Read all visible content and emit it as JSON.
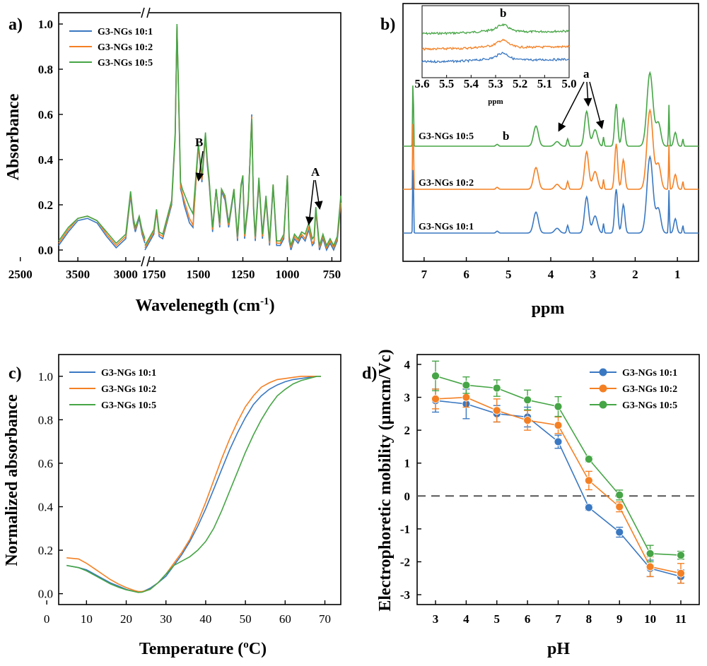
{
  "colors": {
    "s1": "#3a78c2",
    "s2": "#f48024",
    "s3": "#46a546"
  },
  "panel_labels": [
    "a)",
    "b)",
    "c)",
    "d)"
  ],
  "chart_data": [
    {
      "panel": "a)",
      "type": "line",
      "xlabel": "Wavelenegth (cm",
      "xlabel_sup": "-1",
      "xlabel_end": ")",
      "ylabel": "Absorbance",
      "xlim": [
        3700,
        700
      ],
      "x_break": [
        1800,
        1800
      ],
      "ylim": [
        -0.05,
        1.05
      ],
      "xticks": [
        3500,
        3000,
        2500,
        1750,
        1500,
        1250,
        1000,
        750
      ],
      "yticks": [
        0.0,
        0.2,
        0.4,
        0.6,
        0.8,
        1.0
      ],
      "annotations": [
        "B",
        "A"
      ],
      "series": [
        {
          "name": "G3-NGs 10:1",
          "color": "#3a78c2",
          "x": [
            3700,
            3600,
            3500,
            3400,
            3300,
            3200,
            3100,
            3000,
            2950,
            2920,
            2900,
            2860,
            2830,
            2800,
            1800,
            1750,
            1735,
            1720,
            1700,
            1650,
            1630,
            1620,
            1610,
            1600,
            1590,
            1580,
            1550,
            1530,
            1500,
            1480,
            1460,
            1450,
            1440,
            1420,
            1400,
            1380,
            1370,
            1350,
            1330,
            1300,
            1280,
            1260,
            1250,
            1240,
            1220,
            1200,
            1190,
            1180,
            1160,
            1140,
            1120,
            1100,
            1080,
            1060,
            1040,
            1020,
            1000,
            990,
            980,
            960,
            940,
            920,
            900,
            880,
            860,
            850,
            840,
            820,
            800,
            780,
            760,
            740,
            720,
            700
          ],
          "y": [
            0.02,
            0.08,
            0.13,
            0.14,
            0.12,
            0.06,
            0.01,
            0.05,
            0.24,
            0.12,
            0.08,
            0.14,
            0.07,
            0.03,
            0.0,
            0.07,
            0.17,
            0.06,
            0.05,
            0.2,
            0.5,
            0.99,
            0.65,
            0.27,
            0.24,
            0.2,
            0.12,
            0.1,
            0.46,
            0.3,
            0.5,
            0.38,
            0.3,
            0.08,
            0.27,
            0.1,
            0.26,
            0.22,
            0.1,
            0.26,
            0.04,
            0.28,
            0.32,
            0.05,
            0.2,
            0.6,
            0.18,
            0.04,
            0.3,
            0.05,
            0.22,
            0.02,
            0.28,
            0.02,
            0.02,
            0.05,
            0.33,
            0.04,
            0.0,
            0.05,
            0.03,
            0.06,
            0.04,
            0.09,
            0.02,
            0.03,
            0.18,
            0.0,
            0.05,
            0.0,
            0.03,
            0.0,
            0.04,
            0.2
          ]
        },
        {
          "name": "G3-NGs 10:2",
          "color": "#f48024",
          "x": [
            3700,
            3600,
            3500,
            3400,
            3300,
            3200,
            3100,
            3000,
            2950,
            2920,
            2900,
            2860,
            2830,
            2800,
            1800,
            1750,
            1735,
            1720,
            1700,
            1650,
            1630,
            1620,
            1610,
            1600,
            1590,
            1580,
            1550,
            1530,
            1500,
            1480,
            1460,
            1450,
            1440,
            1420,
            1400,
            1380,
            1370,
            1350,
            1330,
            1300,
            1280,
            1260,
            1250,
            1240,
            1220,
            1200,
            1190,
            1180,
            1160,
            1140,
            1120,
            1100,
            1080,
            1060,
            1040,
            1020,
            1000,
            990,
            980,
            960,
            940,
            920,
            900,
            880,
            860,
            850,
            840,
            820,
            800,
            780,
            760,
            740,
            720,
            700
          ],
          "y": [
            0.03,
            0.09,
            0.14,
            0.15,
            0.13,
            0.07,
            0.02,
            0.06,
            0.25,
            0.13,
            0.09,
            0.15,
            0.08,
            0.04,
            0.01,
            0.08,
            0.17,
            0.07,
            0.06,
            0.21,
            0.51,
            0.99,
            0.66,
            0.28,
            0.25,
            0.22,
            0.14,
            0.11,
            0.46,
            0.31,
            0.51,
            0.39,
            0.31,
            0.09,
            0.27,
            0.11,
            0.27,
            0.23,
            0.11,
            0.27,
            0.05,
            0.29,
            0.33,
            0.06,
            0.21,
            0.59,
            0.19,
            0.05,
            0.31,
            0.06,
            0.23,
            0.03,
            0.29,
            0.03,
            0.03,
            0.06,
            0.33,
            0.05,
            0.01,
            0.06,
            0.04,
            0.07,
            0.05,
            0.1,
            0.03,
            0.04,
            0.18,
            0.01,
            0.06,
            0.01,
            0.04,
            0.01,
            0.05,
            0.21
          ]
        },
        {
          "name": "G3-NGs 10:5",
          "color": "#46a546",
          "x": [
            3700,
            3600,
            3500,
            3400,
            3300,
            3200,
            3100,
            3000,
            2950,
            2920,
            2900,
            2860,
            2830,
            2800,
            1800,
            1750,
            1735,
            1720,
            1700,
            1650,
            1630,
            1620,
            1610,
            1600,
            1590,
            1580,
            1550,
            1530,
            1500,
            1480,
            1460,
            1450,
            1440,
            1420,
            1400,
            1380,
            1370,
            1350,
            1330,
            1300,
            1280,
            1260,
            1250,
            1240,
            1220,
            1200,
            1190,
            1180,
            1160,
            1140,
            1120,
            1100,
            1080,
            1060,
            1040,
            1020,
            1000,
            990,
            980,
            960,
            940,
            920,
            900,
            880,
            860,
            850,
            840,
            820,
            800,
            780,
            760,
            740,
            720,
            700
          ],
          "y": [
            0.04,
            0.1,
            0.14,
            0.15,
            0.13,
            0.08,
            0.03,
            0.07,
            0.26,
            0.14,
            0.1,
            0.15,
            0.09,
            0.05,
            0.02,
            0.09,
            0.18,
            0.08,
            0.07,
            0.22,
            0.52,
            1.0,
            0.67,
            0.3,
            0.27,
            0.25,
            0.19,
            0.16,
            0.47,
            0.33,
            0.52,
            0.4,
            0.32,
            0.1,
            0.27,
            0.12,
            0.27,
            0.24,
            0.12,
            0.27,
            0.06,
            0.29,
            0.33,
            0.07,
            0.22,
            0.58,
            0.2,
            0.06,
            0.32,
            0.07,
            0.24,
            0.04,
            0.29,
            0.04,
            0.04,
            0.07,
            0.33,
            0.06,
            0.02,
            0.07,
            0.05,
            0.08,
            0.07,
            0.12,
            0.05,
            0.06,
            0.19,
            0.02,
            0.07,
            0.02,
            0.05,
            0.02,
            0.06,
            0.24
          ]
        }
      ]
    },
    {
      "panel": "b)",
      "type": "line",
      "xlabel": "ppm",
      "xlim": [
        7.5,
        0.5
      ],
      "xticks": [
        7,
        6,
        5,
        4,
        3,
        2,
        1
      ],
      "annotations": [
        "a",
        "b"
      ],
      "inset": {
        "xlabel": "ppm",
        "xlim": [
          5.6,
          5.0
        ],
        "xticks": [
          "5.6",
          "5.5",
          "5.4",
          "5.3",
          "5.2",
          "5.1",
          "5.0"
        ],
        "label": "b"
      },
      "series": [
        {
          "name": "G3-NGs 10:5",
          "color": "#46a546"
        },
        {
          "name": "G3-NGs 10:2",
          "color": "#f48024"
        },
        {
          "name": "G3-NGs 10:1",
          "color": "#3a78c2"
        }
      ]
    },
    {
      "panel": "c)",
      "type": "line",
      "xlabel": "Temperature (",
      "xlabel_sup": "o",
      "xlabel_end": "C)",
      "ylabel": "Normalized absorbance",
      "xlim": [
        3,
        74
      ],
      "ylim": [
        -0.05,
        1.1
      ],
      "xticks": [
        0,
        10,
        20,
        30,
        40,
        50,
        60,
        70
      ],
      "yticks": [
        0.0,
        0.2,
        0.4,
        0.6,
        0.8,
        1.0
      ],
      "series": [
        {
          "name": "G3-NGs 10:1",
          "color": "#3a78c2",
          "x": [
            5,
            8,
            10,
            12,
            14,
            16,
            18,
            20,
            22,
            23,
            24,
            26,
            28,
            30,
            32,
            34,
            36,
            38,
            40,
            42,
            44,
            46,
            48,
            50,
            52,
            54,
            56,
            58,
            60,
            62,
            64,
            66,
            68,
            69
          ],
          "y": [
            0.13,
            0.12,
            0.11,
            0.09,
            0.07,
            0.05,
            0.035,
            0.02,
            0.01,
            0.007,
            0.008,
            0.025,
            0.05,
            0.08,
            0.13,
            0.18,
            0.24,
            0.31,
            0.39,
            0.48,
            0.57,
            0.66,
            0.74,
            0.81,
            0.87,
            0.91,
            0.94,
            0.96,
            0.975,
            0.985,
            0.99,
            0.995,
            1.0,
            1.0
          ]
        },
        {
          "name": "G3-NGs 10:2",
          "color": "#f48024",
          "x": [
            5,
            8,
            10,
            12,
            14,
            16,
            18,
            20,
            22,
            23,
            24,
            26,
            28,
            30,
            32,
            34,
            36,
            38,
            40,
            42,
            44,
            46,
            48,
            50,
            52,
            54,
            56,
            58,
            60,
            62,
            64,
            66,
            68,
            69
          ],
          "y": [
            0.165,
            0.16,
            0.14,
            0.115,
            0.09,
            0.065,
            0.045,
            0.028,
            0.015,
            0.01,
            0.01,
            0.02,
            0.05,
            0.09,
            0.14,
            0.19,
            0.25,
            0.33,
            0.42,
            0.52,
            0.62,
            0.71,
            0.79,
            0.86,
            0.91,
            0.95,
            0.97,
            0.985,
            0.99,
            0.995,
            1.0,
            1.0,
            1.0,
            1.0
          ]
        },
        {
          "name": "G3-NGs 10:5",
          "color": "#46a546",
          "x": [
            5,
            8,
            10,
            12,
            14,
            16,
            18,
            20,
            22,
            23,
            24,
            26,
            28,
            30,
            32,
            34,
            36,
            38,
            40,
            42,
            44,
            46,
            48,
            50,
            52,
            54,
            56,
            58,
            60,
            62,
            64,
            66,
            68,
            69
          ],
          "y": [
            0.13,
            0.12,
            0.105,
            0.085,
            0.065,
            0.045,
            0.03,
            0.018,
            0.01,
            0.006,
            0.007,
            0.02,
            0.05,
            0.09,
            0.13,
            0.15,
            0.17,
            0.2,
            0.24,
            0.3,
            0.38,
            0.47,
            0.56,
            0.65,
            0.73,
            0.8,
            0.86,
            0.91,
            0.94,
            0.965,
            0.98,
            0.99,
            1.0,
            1.0
          ]
        }
      ]
    },
    {
      "panel": "d)",
      "type": "line",
      "xlabel": "pH",
      "ylabel": "Electrophoretic mobility (μmcm/Vc)",
      "xlim": [
        2.4,
        11.6
      ],
      "ylim": [
        -3.3,
        4.3
      ],
      "xticks": [
        3,
        4,
        5,
        6,
        7,
        8,
        9,
        10,
        11
      ],
      "yticks": [
        -3,
        -2,
        -1,
        0,
        1,
        2,
        3,
        4
      ],
      "reference_line_y": 0,
      "series": [
        {
          "name": "G3-NGs 10:1",
          "color": "#3a78c2",
          "x": [
            3,
            4,
            5,
            6,
            7,
            8,
            9,
            10,
            11
          ],
          "y": [
            2.9,
            2.8,
            2.5,
            2.4,
            1.65,
            -0.35,
            -1.1,
            -2.2,
            -2.45
          ],
          "err": [
            0.35,
            0.45,
            0.25,
            0.3,
            0.2,
            0.08,
            0.15,
            0.25,
            0.2
          ]
        },
        {
          "name": "G3-NGs 10:2",
          "color": "#f48024",
          "x": [
            3,
            4,
            5,
            6,
            7,
            8,
            9,
            10,
            11
          ],
          "y": [
            2.95,
            3.0,
            2.6,
            2.3,
            2.15,
            0.47,
            -0.33,
            -2.15,
            -2.35
          ],
          "err": [
            0.3,
            0.3,
            0.35,
            0.3,
            0.25,
            0.28,
            0.15,
            0.3,
            0.3
          ]
        },
        {
          "name": "G3-NGs 10:5",
          "color": "#46a546",
          "x": [
            3,
            4,
            5,
            6,
            7,
            8,
            9,
            10,
            11
          ],
          "y": [
            3.65,
            3.37,
            3.28,
            2.92,
            2.72,
            1.12,
            0.03,
            -1.75,
            -1.8
          ],
          "err": [
            0.45,
            0.25,
            0.25,
            0.3,
            0.3,
            0.08,
            0.15,
            0.25,
            0.12
          ]
        }
      ]
    }
  ]
}
